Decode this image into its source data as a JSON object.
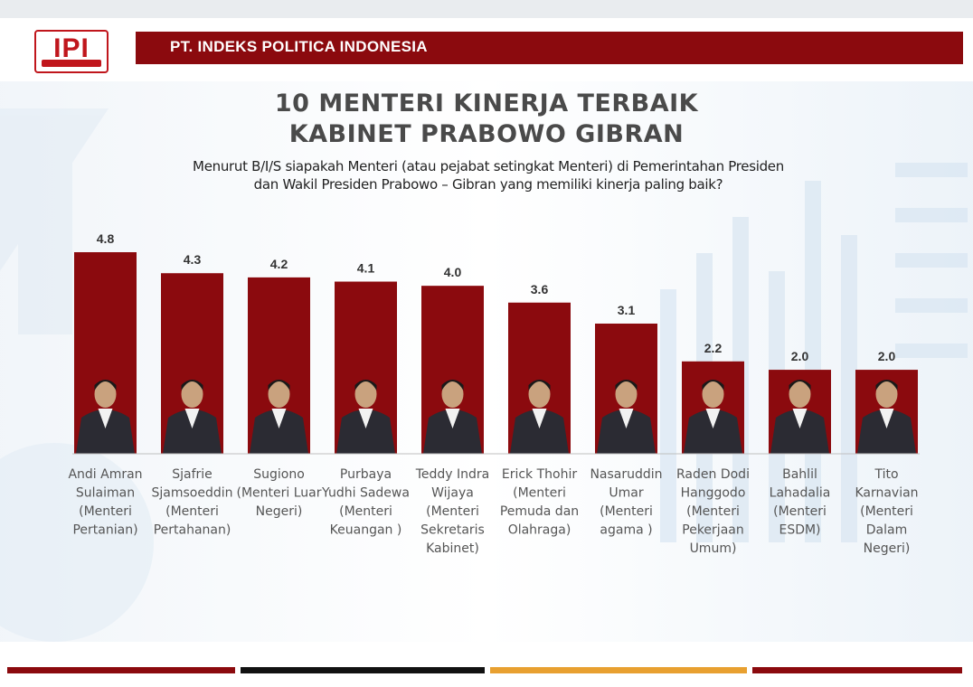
{
  "header": {
    "logo_text": "IPI",
    "company": "PT. INDEKS POLITICA INDONESIA"
  },
  "chart_data": {
    "type": "bar",
    "title_line1": "10 MENTERI  KINERJA TERBAIK",
    "title_line2": "KABINET PRABOWO GIBRAN",
    "question_line1": "Menurut B/I/S siapakah Menteri (atau pejabat setingkat Menteri) di Pemerintahan Presiden",
    "question_line2": "dan Wakil Presiden Prabowo – Gibran yang memiliki kinerja paling baik?",
    "categories": [
      [
        "Andi Amran",
        "Sulaiman",
        "(Menteri",
        "Pertanian)"
      ],
      [
        "Sjafrie",
        "Sjamsoeddin",
        "(Menteri",
        "Pertahanan)"
      ],
      [
        "Sugiono",
        "(Menteri Luar",
        "Negeri)"
      ],
      [
        "Purbaya",
        "Yudhi Sadewa",
        "(Menteri",
        "Keuangan )"
      ],
      [
        "Teddy Indra",
        "Wijaya",
        "(Menteri",
        "Sekretaris",
        "Kabinet)"
      ],
      [
        "Erick Thohir",
        "(Menteri",
        "Pemuda dan",
        "Olahraga)"
      ],
      [
        "Nasaruddin",
        "Umar",
        "(Menteri",
        "agama  )"
      ],
      [
        "Raden Dodi",
        "Hanggodo",
        "(Menteri",
        "Pekerjaan",
        "Umum)"
      ],
      [
        "Bahlil",
        "Lahadalia",
        "(Menteri",
        "ESDM)"
      ],
      [
        "Tito",
        "Karnavian",
        "(Menteri",
        "Dalam",
        "Negeri)"
      ]
    ],
    "values": [
      4.8,
      4.3,
      4.2,
      4.1,
      4.0,
      3.6,
      3.1,
      2.2,
      2.0,
      2.0
    ],
    "value_labels": [
      "4.8",
      "4.3",
      "4.2",
      "4.1",
      "4.0",
      "3.6",
      "3.1",
      "2.2",
      "2.0",
      "2.0"
    ],
    "ylim": [
      0,
      4.8
    ],
    "grid": false,
    "legend": "none",
    "bar_color": "#8b0a0e",
    "label_color": "#555555",
    "value_color": "#333333"
  },
  "colors": {
    "header": "#8b0a0e",
    "footer": [
      "#8b0a0e",
      "#111111",
      "#e8a030",
      "#8b0a0e"
    ]
  }
}
